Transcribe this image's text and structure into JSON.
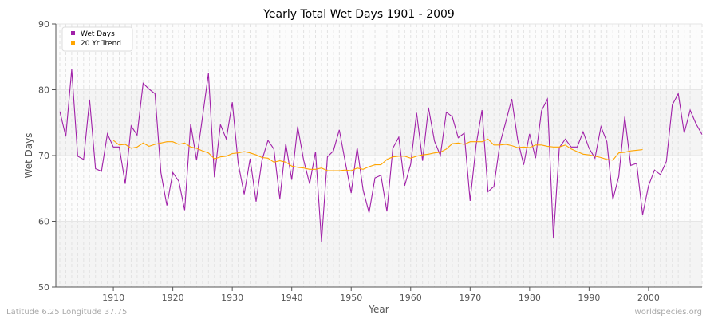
{
  "chart_data": {
    "type": "line",
    "title": "Yearly Total Wet Days 1901 - 2009",
    "xlabel": "Year",
    "ylabel": "Wet Days",
    "xlim": [
      1901,
      2009
    ],
    "ylim": [
      50,
      90
    ],
    "yticks": [
      50,
      60,
      70,
      80,
      90
    ],
    "xticks": [
      1910,
      1920,
      1930,
      1940,
      1950,
      1960,
      1970,
      1980,
      1990,
      2000
    ],
    "grid": true,
    "legend_position": "top-left",
    "series": [
      {
        "name": "Wet Days",
        "color": "#a020a8",
        "start_year": 1901,
        "values": [
          76.7,
          72.9,
          83.1,
          69.9,
          69.4,
          78.5,
          68.0,
          67.6,
          73.3,
          71.3,
          71.3,
          65.7,
          74.5,
          73.1,
          81.0,
          80.1,
          79.4,
          67.4,
          62.4,
          67.4,
          66.1,
          61.7,
          74.8,
          69.3,
          75.9,
          82.5,
          66.7,
          74.7,
          72.5,
          78.1,
          68.8,
          64.1,
          69.5,
          63.0,
          69.3,
          72.3,
          71.0,
          63.4,
          71.8,
          66.3,
          74.4,
          69.3,
          65.7,
          70.6,
          56.9,
          69.8,
          70.7,
          73.9,
          69.0,
          64.3,
          71.2,
          64.8,
          61.3,
          66.6,
          67.0,
          61.5,
          71.1,
          72.8,
          65.4,
          68.7,
          76.5,
          69.2,
          77.3,
          72.2,
          70.0,
          76.6,
          75.9,
          72.7,
          73.4,
          63.1,
          71.6,
          76.9,
          64.5,
          65.3,
          71.8,
          75.1,
          78.6,
          72.4,
          68.6,
          73.3,
          69.6,
          76.8,
          78.6,
          57.4,
          71.2,
          72.5,
          71.3,
          71.3,
          73.6,
          71.1,
          69.6,
          74.4,
          72.1,
          63.3,
          66.8,
          75.9,
          68.5,
          68.8,
          61.0,
          65.4,
          67.8,
          67.1,
          69.1,
          77.7,
          79.4,
          73.4,
          76.9,
          74.8,
          73.2
        ]
      },
      {
        "name": "20 Yr Trend",
        "color": "#ffa500",
        "start_year": 1910,
        "values": [
          72.3,
          71.6,
          71.7,
          71.1,
          71.3,
          71.9,
          71.4,
          71.7,
          71.9,
          72.1,
          72.1,
          71.7,
          71.9,
          71.3,
          71.1,
          70.7,
          70.4,
          69.5,
          69.8,
          69.9,
          70.3,
          70.4,
          70.6,
          70.4,
          70.1,
          69.7,
          69.6,
          69.0,
          69.2,
          69.0,
          68.4,
          68.2,
          68.1,
          67.9,
          67.9,
          68.1,
          67.7,
          67.7,
          67.7,
          67.8,
          67.7,
          68.1,
          67.9,
          68.3,
          68.6,
          68.6,
          69.4,
          69.8,
          69.9,
          69.9,
          69.6,
          69.9,
          70.1,
          70.2,
          70.4,
          70.5,
          71.0,
          71.8,
          71.9,
          71.7,
          72.1,
          72.1,
          72.1,
          72.5,
          71.6,
          71.6,
          71.7,
          71.5,
          71.2,
          71.3,
          71.2,
          71.6,
          71.6,
          71.4,
          71.3,
          71.3,
          71.6,
          71.0,
          70.6,
          70.2,
          70.1,
          69.9,
          69.7,
          69.4,
          69.3,
          70.4,
          70.5,
          70.7,
          70.8,
          70.9
        ]
      }
    ]
  },
  "footer": {
    "left": "Latitude 6.25 Longitude 37.75",
    "right": "worldspecies.org"
  }
}
